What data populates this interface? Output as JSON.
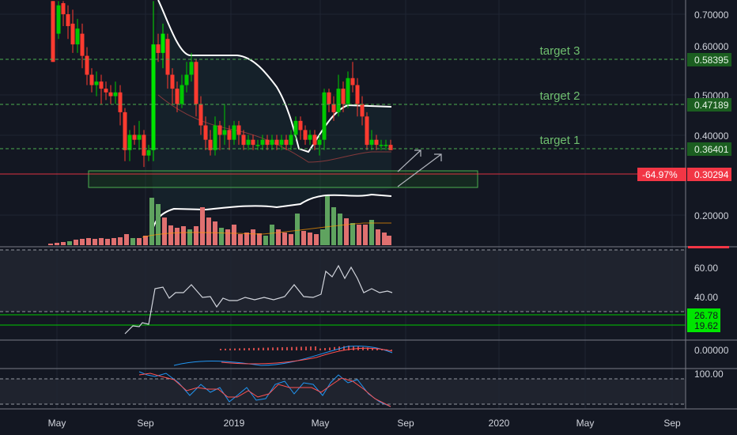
{
  "main_pane": {
    "price_scale": {
      "ticks": [
        "0.70000",
        "0.50000",
        "0.40000",
        "0.20000"
      ],
      "hidden_tick": "0.60000",
      "scale": "log",
      "range": [
        0.14,
        0.76
      ]
    },
    "targets": [
      {
        "label": "target 3",
        "price": "0.58395"
      },
      {
        "label": "target 2",
        "price": "0.47189"
      },
      {
        "label": "target 1",
        "price": "0.36401"
      }
    ],
    "current": {
      "change": "-64.97%",
      "price": "0.30294"
    },
    "zone": {
      "top": 0.32,
      "bottom": 0.285
    },
    "colors": {
      "up": "#26a69a",
      "down": "#ef5350",
      "bright_up": "#00e600",
      "target": "#4caf50",
      "price_line": "#f23645",
      "volume_up": "#5fa35f",
      "volume_down": "#e07070"
    }
  },
  "rsi_pane": {
    "ticks": [
      "60.00",
      "40.00"
    ],
    "levels": [
      "26.78",
      "19.62"
    ],
    "range": [
      10,
      75
    ]
  },
  "macd_pane": {
    "ticks": [
      "0.00000"
    ]
  },
  "stoch_pane": {
    "ticks": [
      "100.00"
    ]
  },
  "time_axis": {
    "labels": [
      "May",
      "Sep",
      "2019",
      "May",
      "Sep",
      "2020",
      "May",
      "Sep"
    ]
  }
}
